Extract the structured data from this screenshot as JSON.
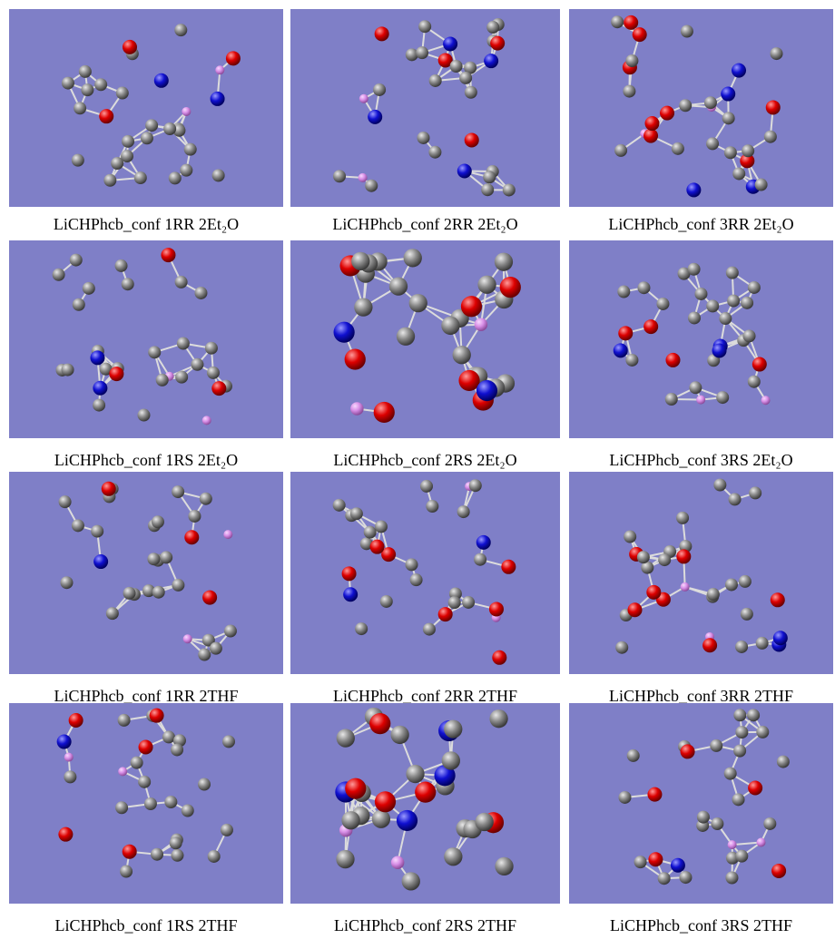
{
  "figure": {
    "panels": [
      {
        "caption": "LiCHPhcb_conf 1RR 2Et₂O"
      },
      {
        "caption": "LiCHPhcb_conf 2RR 2Et₂O"
      },
      {
        "caption": "LiCHPhcb_conf 3RR 2Et₂O"
      },
      {
        "caption": "LiCHPhcb_conf 1RS 2Et₂O"
      },
      {
        "caption": "LiCHPhcb_conf 2RS 2Et₂O"
      },
      {
        "caption": "LiCHPhcb_conf 3RS 2Et₂O"
      },
      {
        "caption": "LiCHPhcb_conf 1RR 2THF"
      },
      {
        "caption": "LiCHPhcb_conf 2RR 2THF"
      },
      {
        "caption": "LiCHPhcb_conf 3RR 2THF"
      },
      {
        "caption": "LiCHPhcb_conf 1RS 2THF"
      },
      {
        "caption": "LiCHPhcb_conf 2RS 2THF"
      },
      {
        "caption": "LiCHPhcb_conf 3RS 2THF"
      }
    ]
  }
}
